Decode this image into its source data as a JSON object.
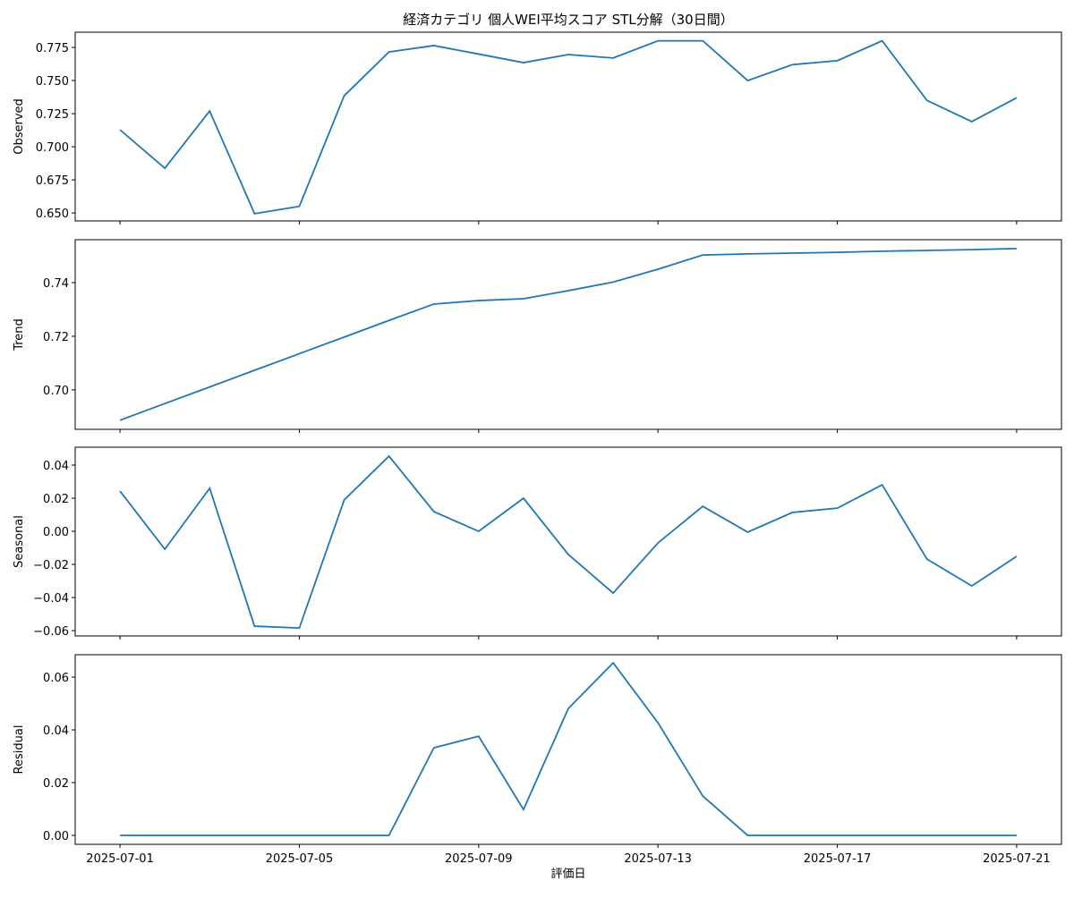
{
  "chart_data": [
    {
      "type": "line",
      "title": "経済カテゴリ 個人WEI平均スコア STL分解（30日間）",
      "ylabel": "Observed",
      "color": "#1f77b4",
      "x": [
        "2025-07-01",
        "2025-07-02",
        "2025-07-03",
        "2025-07-04",
        "2025-07-05",
        "2025-07-06",
        "2025-07-07",
        "2025-07-08",
        "2025-07-09",
        "2025-07-10",
        "2025-07-11",
        "2025-07-12",
        "2025-07-13",
        "2025-07-14",
        "2025-07-15",
        "2025-07-16",
        "2025-07-17",
        "2025-07-18",
        "2025-07-19",
        "2025-07-20",
        "2025-07-21"
      ],
      "values": [
        0.7128,
        0.6838,
        0.727,
        0.6495,
        0.655,
        0.7385,
        0.7716,
        0.7764,
        0.77,
        0.7635,
        0.7696,
        0.767,
        0.78,
        0.78,
        0.75,
        0.762,
        0.765,
        0.78,
        0.735,
        0.719,
        0.737
      ],
      "xlim": [
        "2025-06-30",
        "2025-07-22"
      ],
      "ylim": [
        0.644,
        0.7865
      ],
      "yticks": [
        {
          "value": 0.65,
          "label": "0.650"
        },
        0.675,
        {
          "value": 0.7,
          "label": "0.700"
        },
        0.725,
        {
          "value": 0.75,
          "label": "0.750"
        },
        0.775
      ]
    },
    {
      "type": "line",
      "ylabel": "Trend",
      "color": "#1f77b4",
      "x": [
        "2025-07-01",
        "2025-07-02",
        "2025-07-03",
        "2025-07-04",
        "2025-07-05",
        "2025-07-06",
        "2025-07-07",
        "2025-07-08",
        "2025-07-09",
        "2025-07-10",
        "2025-07-11",
        "2025-07-12",
        "2025-07-13",
        "2025-07-14",
        "2025-07-15",
        "2025-07-16",
        "2025-07-17",
        "2025-07-18",
        "2025-07-19",
        "2025-07-20",
        "2025-07-21"
      ],
      "values": [
        0.6887,
        0.6949,
        0.7011,
        0.7073,
        0.7135,
        0.7197,
        0.7259,
        0.732,
        0.7333,
        0.734,
        0.737,
        0.7402,
        0.745,
        0.7503,
        0.7507,
        0.751,
        0.7513,
        0.7517,
        0.752,
        0.7523,
        0.7527
      ],
      "xlim": [
        "2025-06-30",
        "2025-07-22"
      ],
      "ylim": [
        0.6853,
        0.756
      ],
      "yticks": [
        {
          "value": 0.7,
          "label": "0.70"
        },
        0.72,
        0.74
      ]
    },
    {
      "type": "line",
      "ylabel": "Seasonal",
      "color": "#1f77b4",
      "x": [
        "2025-07-01",
        "2025-07-02",
        "2025-07-03",
        "2025-07-04",
        "2025-07-05",
        "2025-07-06",
        "2025-07-07",
        "2025-07-08",
        "2025-07-09",
        "2025-07-10",
        "2025-07-11",
        "2025-07-12",
        "2025-07-13",
        "2025-07-14",
        "2025-07-15",
        "2025-07-16",
        "2025-07-17",
        "2025-07-18",
        "2025-07-19",
        "2025-07-20",
        "2025-07-21"
      ],
      "values": [
        0.0243,
        -0.0108,
        0.026,
        -0.0573,
        -0.0584,
        0.0189,
        0.0454,
        0.0119,
        0,
        0.02,
        -0.014,
        -0.0373,
        -0.007,
        0.0151,
        -0.0005,
        0.0114,
        0.014,
        0.0281,
        -0.0168,
        -0.033,
        -0.0151
      ],
      "xlim": [
        "2025-06-30",
        "2025-07-22"
      ],
      "ylim": [
        -0.0632,
        0.0508
      ],
      "yticks": [
        {
          "value": -0.06,
          "label": "−0.06"
        },
        {
          "value": -0.04,
          "label": "−0.04"
        },
        {
          "value": -0.02,
          "label": "−0.02"
        },
        {
          "value": 0,
          "label": "0.00"
        },
        0.02,
        0.04
      ]
    },
    {
      "type": "line",
      "ylabel": "Residual",
      "xlabel": "評価日",
      "color": "#1f77b4",
      "x": [
        "2025-07-01",
        "2025-07-02",
        "2025-07-03",
        "2025-07-04",
        "2025-07-05",
        "2025-07-06",
        "2025-07-07",
        "2025-07-08",
        "2025-07-09",
        "2025-07-10",
        "2025-07-11",
        "2025-07-12",
        "2025-07-13",
        "2025-07-14",
        "2025-07-15",
        "2025-07-16",
        "2025-07-17",
        "2025-07-18",
        "2025-07-19",
        "2025-07-20",
        "2025-07-21"
      ],
      "values": [
        0,
        0,
        0,
        0,
        0,
        0,
        0,
        0.0332,
        0.0376,
        0.0098,
        0.0481,
        0.0654,
        0.0427,
        0.0149,
        0,
        0,
        0,
        0,
        0,
        0,
        0
      ],
      "xlim": [
        "2025-06-30",
        "2025-07-22"
      ],
      "ylim": [
        -0.0034,
        0.0685
      ],
      "yticks": [
        {
          "value": 0,
          "label": "0.00"
        },
        0.02,
        0.04,
        0.06
      ],
      "xticks": [
        "2025-07-01",
        "2025-07-05",
        "2025-07-09",
        "2025-07-13",
        "2025-07-17",
        "2025-07-21"
      ]
    }
  ]
}
